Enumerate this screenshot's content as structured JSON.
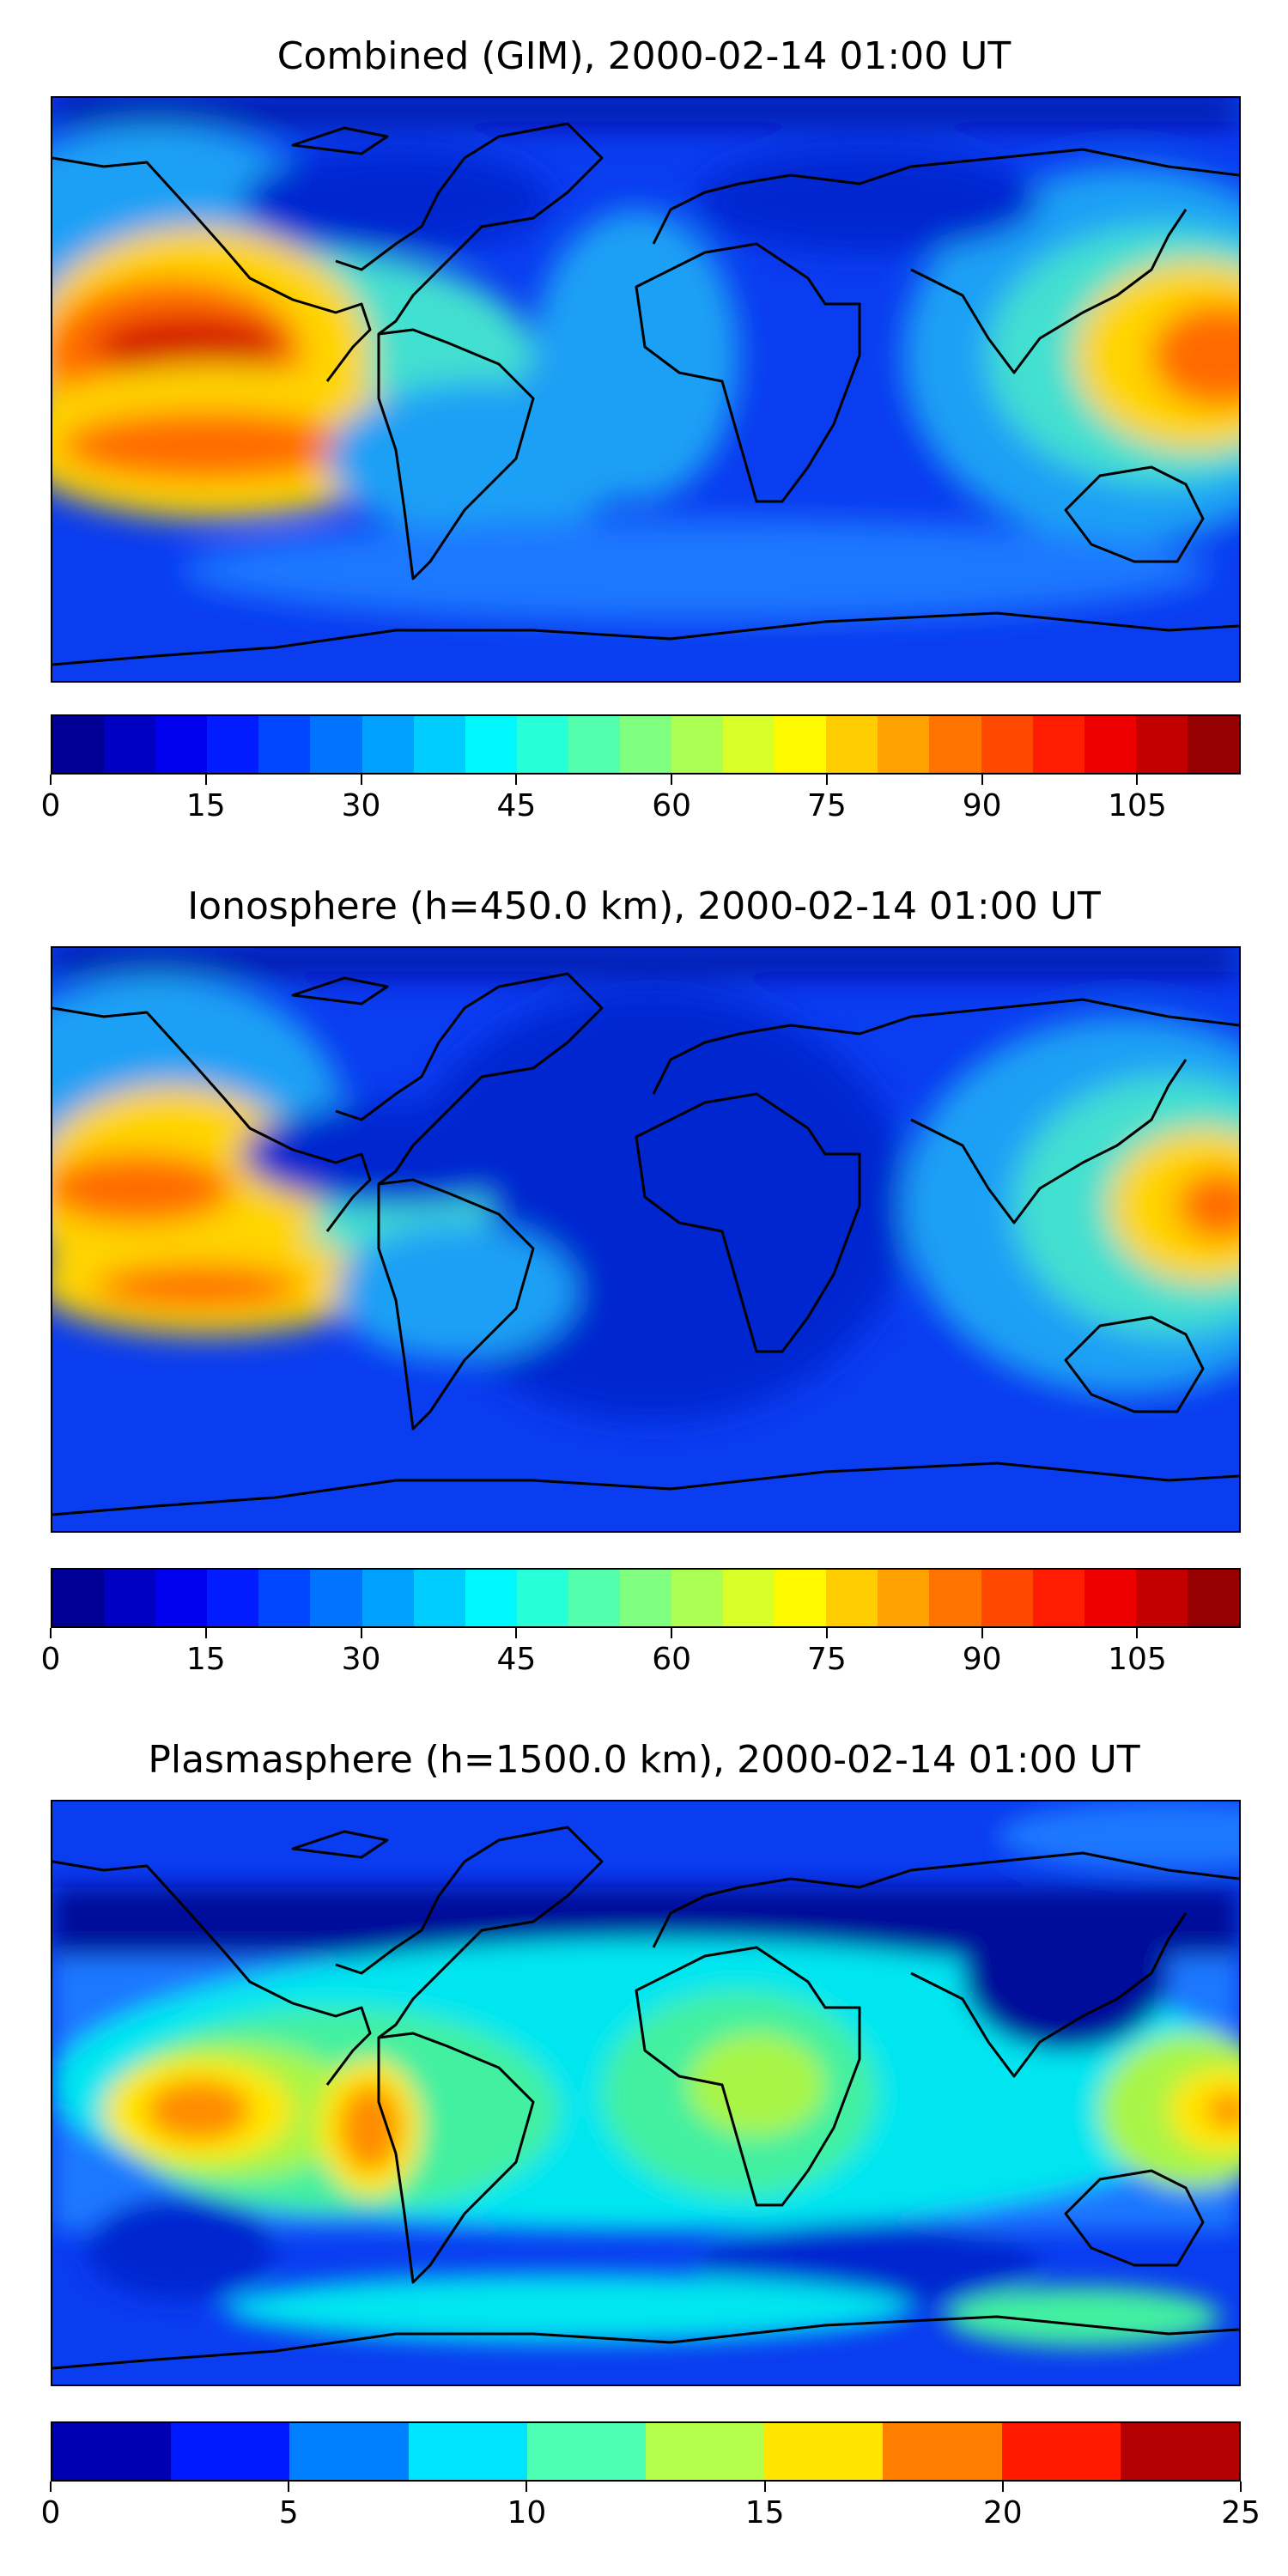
{
  "panels": [
    {
      "title": "Combined (GIM), 2000-02-14 01:00 UT",
      "colorbar": {
        "ticks": [
          "0",
          "15",
          "30",
          "45",
          "60",
          "75",
          "90",
          "105"
        ],
        "tick_values": [
          0,
          15,
          30,
          45,
          60,
          75,
          90,
          105
        ],
        "min": 0,
        "max": 115,
        "levels": 23
      }
    },
    {
      "title": "Ionosphere  (h=450.0 km), 2000-02-14 01:00 UT",
      "colorbar": {
        "ticks": [
          "0",
          "15",
          "30",
          "45",
          "60",
          "75",
          "90",
          "105"
        ],
        "tick_values": [
          0,
          15,
          30,
          45,
          60,
          75,
          90,
          105
        ],
        "min": 0,
        "max": 115,
        "levels": 23
      }
    },
    {
      "title": "Plasmasphere (h=1500.0 km), 2000-02-14 01:00 UT",
      "colorbar": {
        "ticks": [
          "0",
          "5",
          "10",
          "15",
          "20",
          "25"
        ],
        "tick_values": [
          0,
          5,
          10,
          15,
          20,
          25
        ],
        "min": 0,
        "max": 25,
        "levels": 10
      }
    }
  ],
  "colormap": "jet",
  "map_background": "#0a3cf0",
  "coastline_color": "#000000"
}
